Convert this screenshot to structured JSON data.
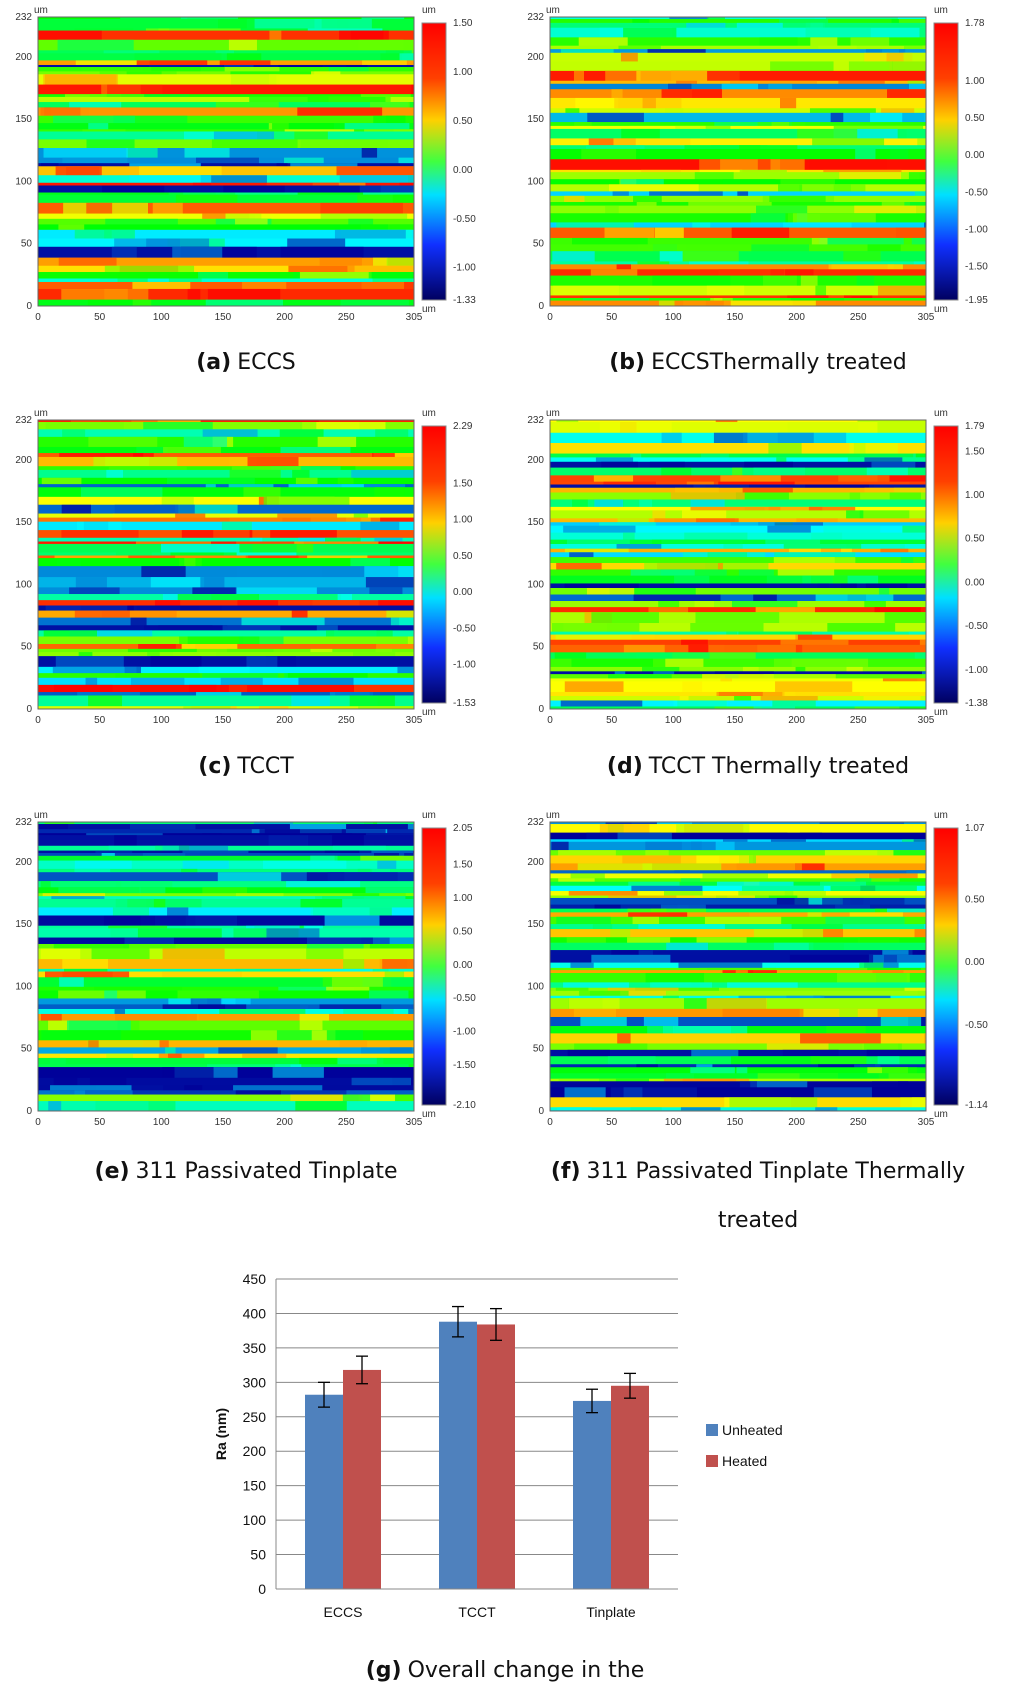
{
  "panels": [
    {
      "caption": {
        "label": "(a)",
        "lines": [
          "ECCS"
        ]
      },
      "unit": "um",
      "xticks": [
        "0",
        "50",
        "100",
        "150",
        "200",
        "250",
        "305"
      ],
      "yticks": [
        "0",
        "50",
        "100",
        "150",
        "200",
        "232"
      ],
      "scale": [
        "1.50",
        "1.00",
        "0.50",
        "0.00",
        "-0.50",
        "-1.00",
        "-1.33"
      ]
    },
    {
      "caption": {
        "label": "(b)",
        "lines": [
          "ECCSThermally treated"
        ]
      },
      "unit": "um",
      "xticks": [
        "0",
        "50",
        "100",
        "150",
        "200",
        "250",
        "305"
      ],
      "yticks": [
        "0",
        "50",
        "100",
        "150",
        "200",
        "232"
      ],
      "scale": [
        "1.78",
        "1.00",
        "0.50",
        "0.00",
        "-0.50",
        "-1.00",
        "-1.50",
        "-1.95"
      ]
    },
    {
      "caption": {
        "label": "(c)",
        "lines": [
          "TCCT"
        ]
      },
      "unit": "um",
      "xticks": [
        "0",
        "50",
        "100",
        "150",
        "200",
        "250",
        "305"
      ],
      "yticks": [
        "0",
        "50",
        "100",
        "150",
        "200",
        "232"
      ],
      "scale": [
        "2.29",
        "1.50",
        "1.00",
        "0.50",
        "0.00",
        "-0.50",
        "-1.00",
        "-1.53"
      ]
    },
    {
      "caption": {
        "label": "(d)",
        "lines": [
          "TCCT Thermally treated"
        ]
      },
      "unit": "um",
      "xticks": [
        "0",
        "50",
        "100",
        "150",
        "200",
        "250",
        "305"
      ],
      "yticks": [
        "0",
        "50",
        "100",
        "150",
        "200",
        "232"
      ],
      "scale": [
        "1.79",
        "1.50",
        "1.00",
        "0.50",
        "0.00",
        "-0.50",
        "-1.00",
        "-1.38"
      ]
    },
    {
      "caption": {
        "label": "(e)",
        "lines": [
          "311 Passivated Tinplate"
        ]
      },
      "unit": "um",
      "xticks": [
        "0",
        "50",
        "100",
        "150",
        "200",
        "250",
        "305"
      ],
      "yticks": [
        "0",
        "50",
        "100",
        "150",
        "200",
        "232"
      ],
      "scale": [
        "2.05",
        "1.50",
        "1.00",
        "0.50",
        "0.00",
        "-0.50",
        "-1.00",
        "-1.50",
        "-2.10"
      ]
    },
    {
      "caption": {
        "label": "(f)",
        "lines": [
          "311 Passivated Tinplate Thermally",
          "treated"
        ]
      },
      "unit": "um",
      "xticks": [
        "0",
        "50",
        "100",
        "150",
        "200",
        "250",
        "305"
      ],
      "yticks": [
        "0",
        "50",
        "100",
        "150",
        "200",
        "232"
      ],
      "scale": [
        "1.07",
        "0.50",
        "0.00",
        "-0.50",
        "-1.14"
      ]
    }
  ],
  "chart_data": {
    "type": "bar",
    "caption": {
      "label": "(g)",
      "text": "Overall change in the"
    },
    "y_label": "Ra (nm)",
    "categories": [
      "ECCS",
      "TCCT",
      "Tinplate"
    ],
    "series": [
      {
        "name": "Unheated",
        "color": "#4f81bd",
        "values": [
          282,
          388,
          273
        ],
        "errors": [
          18,
          22,
          17
        ]
      },
      {
        "name": "Heated",
        "color": "#c0504d",
        "values": [
          318,
          384,
          295
        ],
        "errors": [
          20,
          23,
          18
        ]
      }
    ],
    "ylim": [
      0,
      450
    ],
    "yticks": [
      0,
      50,
      100,
      150,
      200,
      250,
      300,
      350,
      400,
      450
    ],
    "grid": true,
    "legend": "right"
  }
}
